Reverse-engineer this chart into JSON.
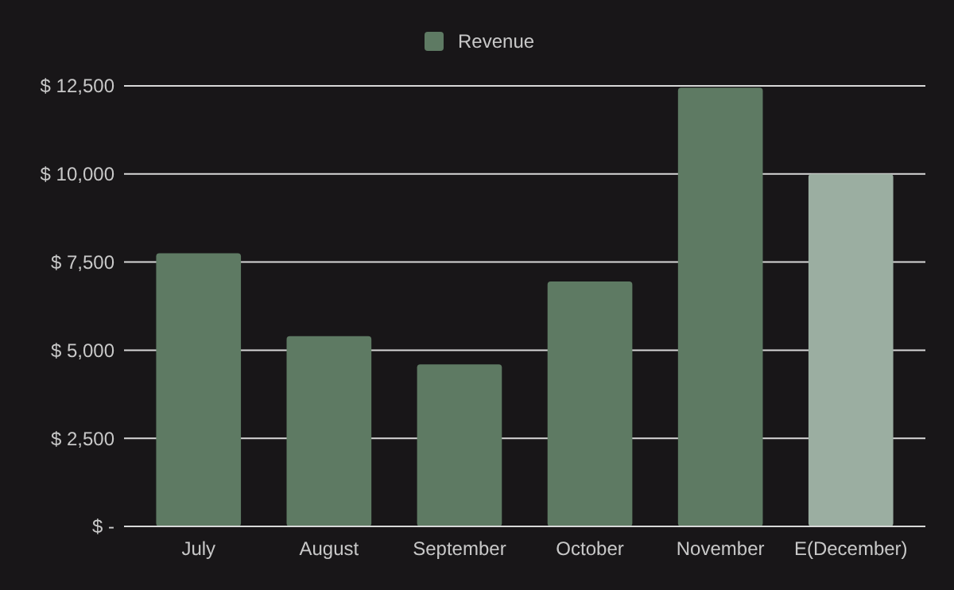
{
  "chart_data": {
    "type": "bar",
    "categories": [
      "July",
      "August",
      "September",
      "October",
      "November",
      "E(December)"
    ],
    "series": [
      {
        "name": "Revenue",
        "color": "#5e7a63",
        "colors": [
          "#5e7a63",
          "#5e7a63",
          "#5e7a63",
          "#5e7a63",
          "#5e7a63",
          "#9baea1"
        ],
        "values": [
          7750,
          5400,
          4600,
          6950,
          12450,
          10000
        ]
      }
    ],
    "ylim": [
      0,
      12500
    ],
    "yticks": [
      {
        "value": 0,
        "label": "$ -"
      },
      {
        "value": 2500,
        "label": "$ 2,500"
      },
      {
        "value": 5000,
        "label": "$ 5,000"
      },
      {
        "value": 7500,
        "label": "$ 7,500"
      },
      {
        "value": 10000,
        "label": "$ 10,000"
      },
      {
        "value": 12500,
        "label": "$ 12,500"
      }
    ],
    "grid": "y",
    "legend": "top"
  }
}
